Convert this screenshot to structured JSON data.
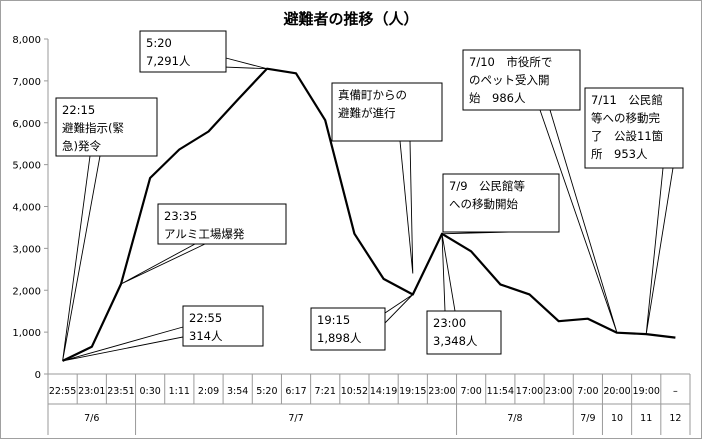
{
  "chart_data": {
    "type": "line",
    "title": "避難者の推移（人）",
    "ylim": [
      0,
      8000
    ],
    "yticks": [
      "0",
      "1,000",
      "2,000",
      "3,000",
      "4,000",
      "5,000",
      "6,000",
      "7,000",
      "8,000"
    ],
    "grid": false,
    "legend": "none",
    "line_color": "#000000",
    "categories": [
      "22:55",
      "23:01",
      "23:51",
      "0:30",
      "1:11",
      "2:09",
      "3:54",
      "5:20",
      "6:17",
      "7:21",
      "10:52",
      "14:19",
      "19:15",
      "23:00",
      "7:00",
      "11:54",
      "17:00",
      "23:00",
      "7:00",
      "20:00",
      "19:00",
      "–"
    ],
    "dates": [
      {
        "label": "7/6",
        "from": 0,
        "to": 2
      },
      {
        "label": "7/7",
        "from": 3,
        "to": 13
      },
      {
        "label": "7/8",
        "from": 14,
        "to": 17
      },
      {
        "label": "7/9",
        "from": 18,
        "to": 18
      },
      {
        "label": "10",
        "from": 19,
        "to": 19
      },
      {
        "label": "11",
        "from": 20,
        "to": 20
      },
      {
        "label": "12",
        "from": 21,
        "to": 21
      }
    ],
    "values": [
      314,
      650,
      2150,
      4680,
      5360,
      5790,
      6550,
      7291,
      7180,
      6060,
      3350,
      2270,
      1898,
      3348,
      2930,
      2140,
      1900,
      1260,
      1320,
      986,
      953,
      870
    ],
    "annotations": [
      {
        "lines": [
          "22:15",
          "避難指示(緊",
          "急)発令"
        ],
        "target_index": 0,
        "target_value": 314
      },
      {
        "lines": [
          "5:20",
          "7,291人"
        ],
        "target_index": 7,
        "target_value": 7291
      },
      {
        "lines": [
          "23:35",
          "アルミ工場爆発"
        ],
        "target_index": 2,
        "target_value": 2150
      },
      {
        "lines": [
          "22:55",
          "314人"
        ],
        "target_index": 0,
        "target_value": 314
      },
      {
        "lines": [
          "真備町からの",
          "避難が進行"
        ],
        "target_index": 12,
        "target_value": 2400
      },
      {
        "lines": [
          "19:15",
          "1,898人"
        ],
        "target_index": 12,
        "target_value": 1898
      },
      {
        "lines": [
          "7/9　公民館等",
          "への移動開始"
        ],
        "target_index": 13,
        "target_value": 3348
      },
      {
        "lines": [
          "23:00",
          "3,348人"
        ],
        "target_index": 13,
        "target_value": 3348
      },
      {
        "lines": [
          "7/10　市役所で",
          "のペット受入開",
          "始　986人"
        ],
        "target_index": 19,
        "target_value": 986
      },
      {
        "lines": [
          "7/11　公民館",
          "等への移動完",
          "了　公設11箇",
          "所　953人"
        ],
        "target_index": 20,
        "target_value": 953
      }
    ]
  }
}
